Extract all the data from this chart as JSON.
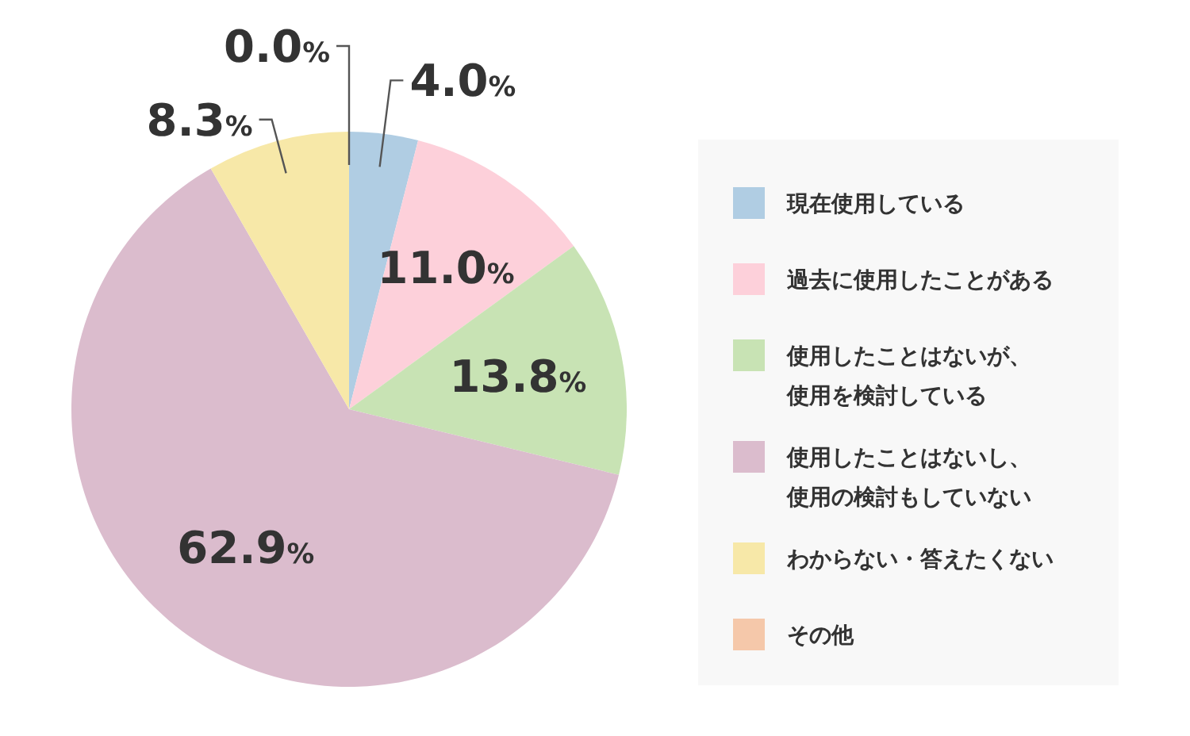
{
  "chart_data": {
    "type": "pie",
    "categories": [
      "現在使用している",
      "過去に使用したことがある",
      "使用したことはないが、使用を検討している",
      "使用したことはないし、使用の検討もしていない",
      "わからない・答えたくない",
      "その他"
    ],
    "values": [
      4.0,
      11.0,
      13.8,
      62.9,
      8.3,
      0.0
    ],
    "value_labels": [
      "4.0%",
      "11.0%",
      "13.8%",
      "62.9%",
      "8.3%",
      "0.0%"
    ],
    "colors": [
      "#b0cde3",
      "#fdd0da",
      "#c8e3b4",
      "#dbbccd",
      "#f7e8a8",
      "#f5c8aa"
    ],
    "legend": "right"
  }
}
